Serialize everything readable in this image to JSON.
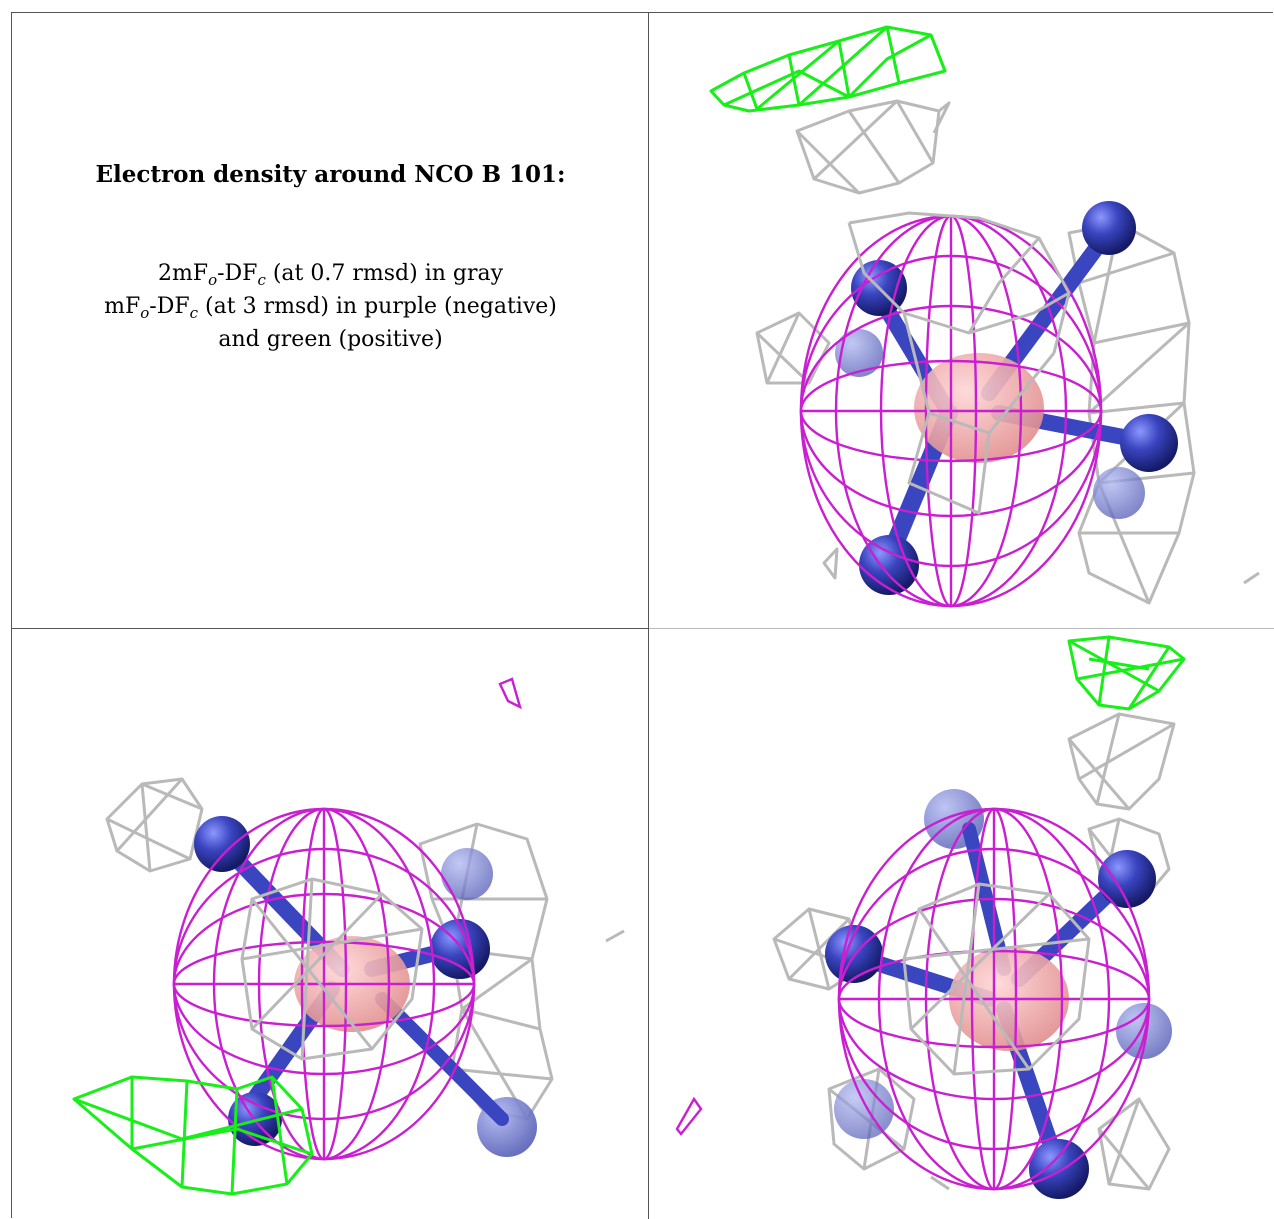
{
  "caption": {
    "title": "Electron density around NCO B 101:",
    "line1": {
      "prefix": "2mF",
      "sub1": "o",
      "mid": "-DF",
      "sub2": "c",
      "suffix": " (at 0.7 rmsd) in gray"
    },
    "line2": {
      "prefix": "mF",
      "sub1": "o",
      "mid": "-DF",
      "sub2": "c",
      "suffix": " (at 3 rmsd) in purple (negative)"
    },
    "line3": "and green (positive)"
  },
  "colors": {
    "positive_map": "#18ee18",
    "negative_map": "#c91fd1",
    "two_fo_fc_map": "#b9b9b9",
    "ligand_center": "#f2a0a0",
    "ligand_atoms": "#3a45b8"
  },
  "views": [
    {
      "name": "view-top-right",
      "icon": "electron-density-render"
    },
    {
      "name": "view-bottom-left",
      "icon": "electron-density-render"
    },
    {
      "name": "view-bottom-right",
      "icon": "electron-density-render"
    }
  ]
}
